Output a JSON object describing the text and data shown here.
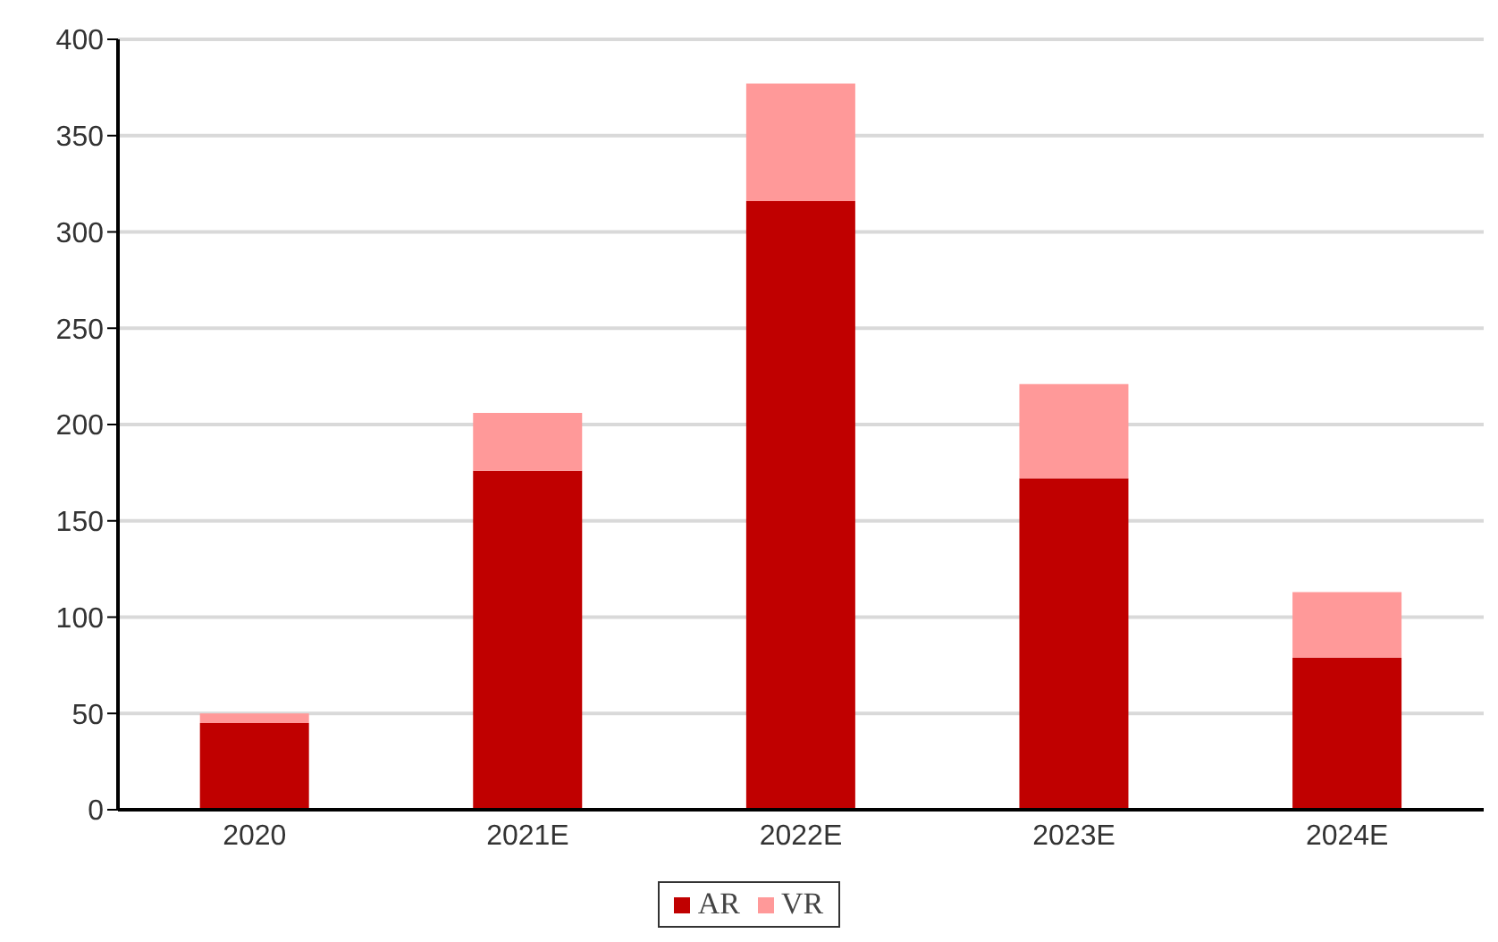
{
  "chart_data": {
    "type": "bar",
    "stacked": true,
    "categories": [
      "2020",
      "2021E",
      "2022E",
      "2023E",
      "2024E"
    ],
    "series": [
      {
        "name": "AR",
        "color": "#c00000",
        "values": [
          45,
          176,
          316,
          172,
          79
        ]
      },
      {
        "name": "VR",
        "color": "#ff9999",
        "values": [
          5,
          30,
          61,
          49,
          34
        ]
      }
    ],
    "ylim": [
      0,
      400
    ],
    "yticks": [
      0,
      50,
      100,
      150,
      200,
      250,
      300,
      350,
      400
    ],
    "grid": "y",
    "legend": "bottom"
  }
}
